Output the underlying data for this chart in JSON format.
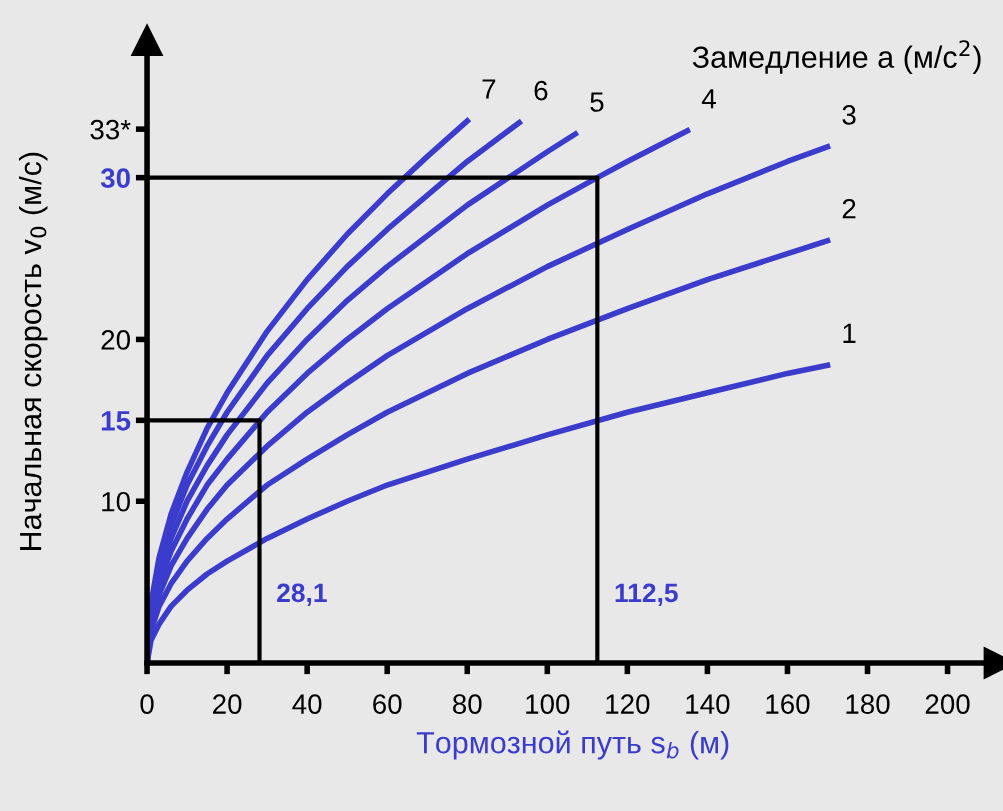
{
  "chart_data": {
    "type": "line",
    "title": "Замедление a (м/с$^{2}$)",
    "xlabel": "Тормозной путь s$_{b}$ (м)",
    "ylabel": "Начальная скорость v$_{0}$ (м/с)",
    "xlim": [
      0,
      213
    ],
    "ylim": [
      0,
      38.5
    ],
    "xticks": [
      0,
      20,
      40,
      60,
      80,
      100,
      120,
      140,
      160,
      180,
      200
    ],
    "yticks": [
      10,
      {
        "value": 15,
        "label": "15"
      },
      20,
      {
        "value": 30,
        "label": "30"
      },
      {
        "value": 33,
        "label": "33*"
      }
    ],
    "grid": false,
    "legend": false,
    "marker": "none",
    "line_style": "solid",
    "series": [
      {
        "name": "1",
        "color": "#3b3bcc",
        "x": [
          0,
          1,
          3,
          6,
          10,
          15,
          20,
          30,
          40,
          50,
          60,
          80,
          100,
          120,
          140,
          160,
          170
        ],
        "values": [
          0,
          1.4,
          2.4,
          3.5,
          4.5,
          5.5,
          6.3,
          7.7,
          8.9,
          10,
          11,
          12.6,
          14.1,
          15.5,
          16.7,
          17.9,
          18.4
        ]
      },
      {
        "name": "2",
        "color": "#3b3bcc",
        "x": [
          0,
          1,
          3,
          6,
          10,
          15,
          20,
          30,
          40,
          50,
          60,
          80,
          100,
          120,
          140,
          160,
          170
        ],
        "values": [
          0,
          2,
          3.5,
          4.9,
          6.3,
          7.7,
          8.9,
          11,
          12.6,
          14.1,
          15.5,
          17.9,
          20,
          21.9,
          23.7,
          25.3,
          26.1
        ]
      },
      {
        "name": "3",
        "color": "#3b3bcc",
        "x": [
          0,
          1,
          3,
          6,
          10,
          15,
          20,
          30,
          40,
          50,
          60,
          80,
          100,
          120,
          140,
          160,
          170
        ],
        "values": [
          0,
          2.4,
          4.2,
          6,
          7.7,
          9.5,
          11,
          13.4,
          15.5,
          17.3,
          19,
          21.9,
          24.5,
          26.8,
          29,
          31,
          31.9
        ]
      },
      {
        "name": "4",
        "color": "#3b3bcc",
        "x": [
          0,
          1,
          3,
          6,
          10,
          15,
          20,
          30,
          40,
          50,
          60,
          80,
          100,
          112.5,
          120,
          135
        ],
        "values": [
          0,
          2.8,
          4.9,
          6.9,
          8.9,
          11,
          12.6,
          15.5,
          17.9,
          20,
          21.9,
          25.3,
          28.3,
          30,
          31,
          32.9
        ]
      },
      {
        "name": "5",
        "color": "#3b3bcc",
        "x": [
          0,
          1,
          3,
          6,
          10,
          15,
          20,
          30,
          40,
          50,
          60,
          80,
          100,
          107
        ],
        "values": [
          0,
          3.2,
          5.5,
          7.7,
          10,
          12.2,
          14.1,
          17.3,
          20,
          22.4,
          24.5,
          28.3,
          31.6,
          32.7
        ]
      },
      {
        "name": "6",
        "color": "#3b3bcc",
        "x": [
          0,
          1,
          3,
          6,
          10,
          15,
          20,
          30,
          40,
          50,
          60,
          80,
          93
        ],
        "values": [
          0,
          3.5,
          6,
          8.5,
          11,
          13.4,
          15.5,
          19,
          21.9,
          24.5,
          26.8,
          31,
          33.4
        ]
      },
      {
        "name": "7",
        "color": "#3b3bcc",
        "x": [
          0,
          1,
          3,
          6,
          10,
          15,
          20,
          30,
          40,
          50,
          60,
          70,
          80
        ],
        "values": [
          0,
          3.7,
          6.5,
          9.2,
          11.8,
          14.5,
          16.7,
          20.5,
          23.7,
          26.5,
          29,
          31.3,
          33.5
        ]
      },
      {
        "color": "#000000",
        "x": [
          0,
          28.1,
          28.1
        ],
        "values": [
          15,
          15,
          0
        ]
      },
      {
        "color": "#000000",
        "x": [
          0,
          112.5,
          112.5
        ],
        "values": [
          30,
          30,
          0
        ]
      }
    ],
    "annotations": [
      {
        "text": "28,1",
        "x": 28.1,
        "y": 0
      },
      {
        "text": "112,5",
        "x": 112.5,
        "y": 0
      }
    ]
  }
}
